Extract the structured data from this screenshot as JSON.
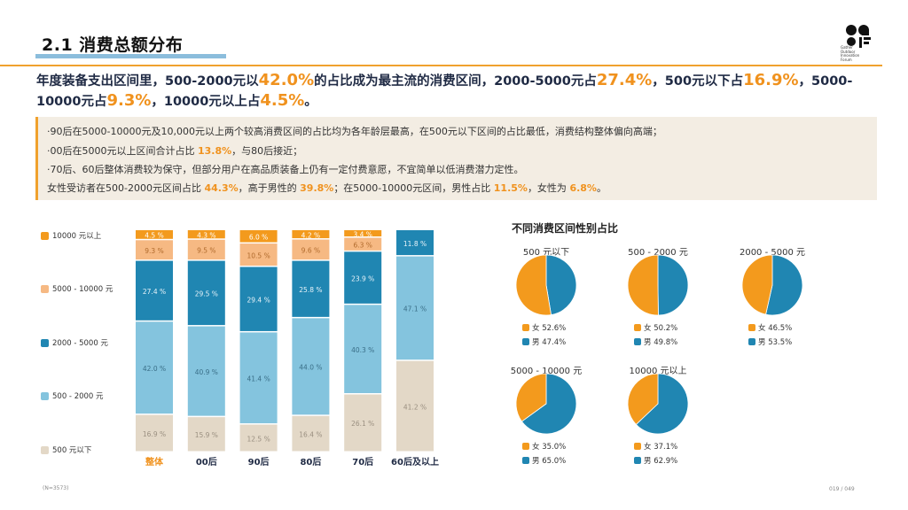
{
  "page_title": "2.1 消费总额分布",
  "logo_lines": [
    "Gather",
    "Outdoor",
    "Innovation",
    "Forum"
  ],
  "summary": {
    "p1": "年度装备支出区间里，500-2000元以",
    "v1": "42.0%",
    "p2": "的占比成为最主流的消费区间，2000-5000元占",
    "v2": "27.4%",
    "p3": "，500元以下占",
    "v3": "16.9%",
    "p4": "，5000-10000元占",
    "v4": "9.3%",
    "p5": "，10000元以上占",
    "v5": "4.5%",
    "p6": "。"
  },
  "notes": {
    "n1": "·90后在5000-10000元及10,000元以上两个较高消费区间的占比均为各年龄层最高，在500元以下区间的占比最低，消费结构整体偏向高端；",
    "n2a": "·00后在5000元以上区间合计占比 ",
    "n2v": "13.8%",
    "n2b": "，与80后接近；",
    "n3": "·70后、60后整体消费较为保守，但部分用户在高品质装备上仍有一定付费意愿，不宜简单以低消费潜力定性。",
    "n4a": "女性受访者在500-2000元区间占比 ",
    "n4v1": "44.3%",
    "n4b": "，高于男性的 ",
    "n4v2": "39.8%",
    "n4c": "；在5000-10000元区间，男性占比 ",
    "n4v3": "11.5%",
    "n4d": "，女性为 ",
    "n4v4": "6.8%",
    "n4e": "。"
  },
  "colors": {
    "above10000": "#f39a1d",
    "r5000_10000": "#f6b983",
    "r2000_5000": "#2086b2",
    "r500_2000": "#84c4de",
    "below500": "#e3d8c7",
    "female": "#f39a1d",
    "male": "#2086b2",
    "accent": "#f0921e"
  },
  "chart_data": [
    {
      "type": "bar",
      "stacked": true,
      "categories": [
        "整体",
        "00后",
        "90后",
        "80后",
        "70后",
        "60后及以上"
      ],
      "series": [
        {
          "name": "500 元以下",
          "values": [
            16.9,
            15.9,
            12.5,
            16.4,
            26.1,
            41.2
          ]
        },
        {
          "name": "500 - 2000 元",
          "values": [
            42.0,
            40.9,
            41.4,
            44.0,
            40.3,
            47.1
          ]
        },
        {
          "name": "2000 - 5000 元",
          "values": [
            27.4,
            29.5,
            29.4,
            25.8,
            23.9,
            11.8
          ]
        },
        {
          "name": "5000 - 10000 元",
          "values": [
            9.3,
            9.5,
            10.5,
            9.6,
            6.3,
            0
          ]
        },
        {
          "name": "10000 元以上",
          "values": [
            4.5,
            4.3,
            6.0,
            4.2,
            3.4,
            0
          ]
        }
      ],
      "value_labels": [
        [
          "16.9 %",
          "42.0 %",
          "27.4 %",
          "9.3 %",
          "4.5 %"
        ],
        [
          "15.9 %",
          "40.9 %",
          "29.5 %",
          "9.5 %",
          "4.3 %"
        ],
        [
          "12.5 %",
          "41.4 %",
          "29.4 %",
          "10.5 %",
          "6.0 %"
        ],
        [
          "16.4 %",
          "44.0 %",
          "25.8 %",
          "9.6 %",
          "4.2 %"
        ],
        [
          "26.1 %",
          "40.3 %",
          "23.9 %",
          "6.3 %",
          "3.4 %"
        ],
        [
          "41.2 %",
          "47.1 %",
          "11.8 %",
          "",
          ""
        ]
      ],
      "legend": [
        "10000 元以上",
        "5000 - 10000 元",
        "2000 - 5000 元",
        "500 - 2000 元",
        "500 元以下"
      ],
      "legend_position": "left",
      "ylim": [
        0,
        100
      ]
    },
    {
      "type": "pie",
      "title": "不同消费区间性别占比",
      "pies": [
        {
          "label": "500 元以下",
          "female": 52.6,
          "male": 47.4,
          "female_label": "女 52.6%",
          "male_label": "男 47.4%"
        },
        {
          "label": "500 - 2000 元",
          "female": 50.2,
          "male": 49.8,
          "female_label": "女 50.2%",
          "male_label": "男 49.8%"
        },
        {
          "label": "2000 - 5000 元",
          "female": 46.5,
          "male": 53.5,
          "female_label": "女 46.5%",
          "male_label": "男 53.5%"
        },
        {
          "label": "5000 - 10000 元",
          "female": 35.0,
          "male": 65.0,
          "female_label": "女 35.0%",
          "male_label": "男 65.0%"
        },
        {
          "label": "10000 元以上",
          "female": 37.1,
          "male": 62.9,
          "female_label": "女 37.1%",
          "male_label": "男 62.9%"
        }
      ]
    }
  ],
  "footer": {
    "left": "(N=3573)",
    "right": "019 / 049"
  }
}
